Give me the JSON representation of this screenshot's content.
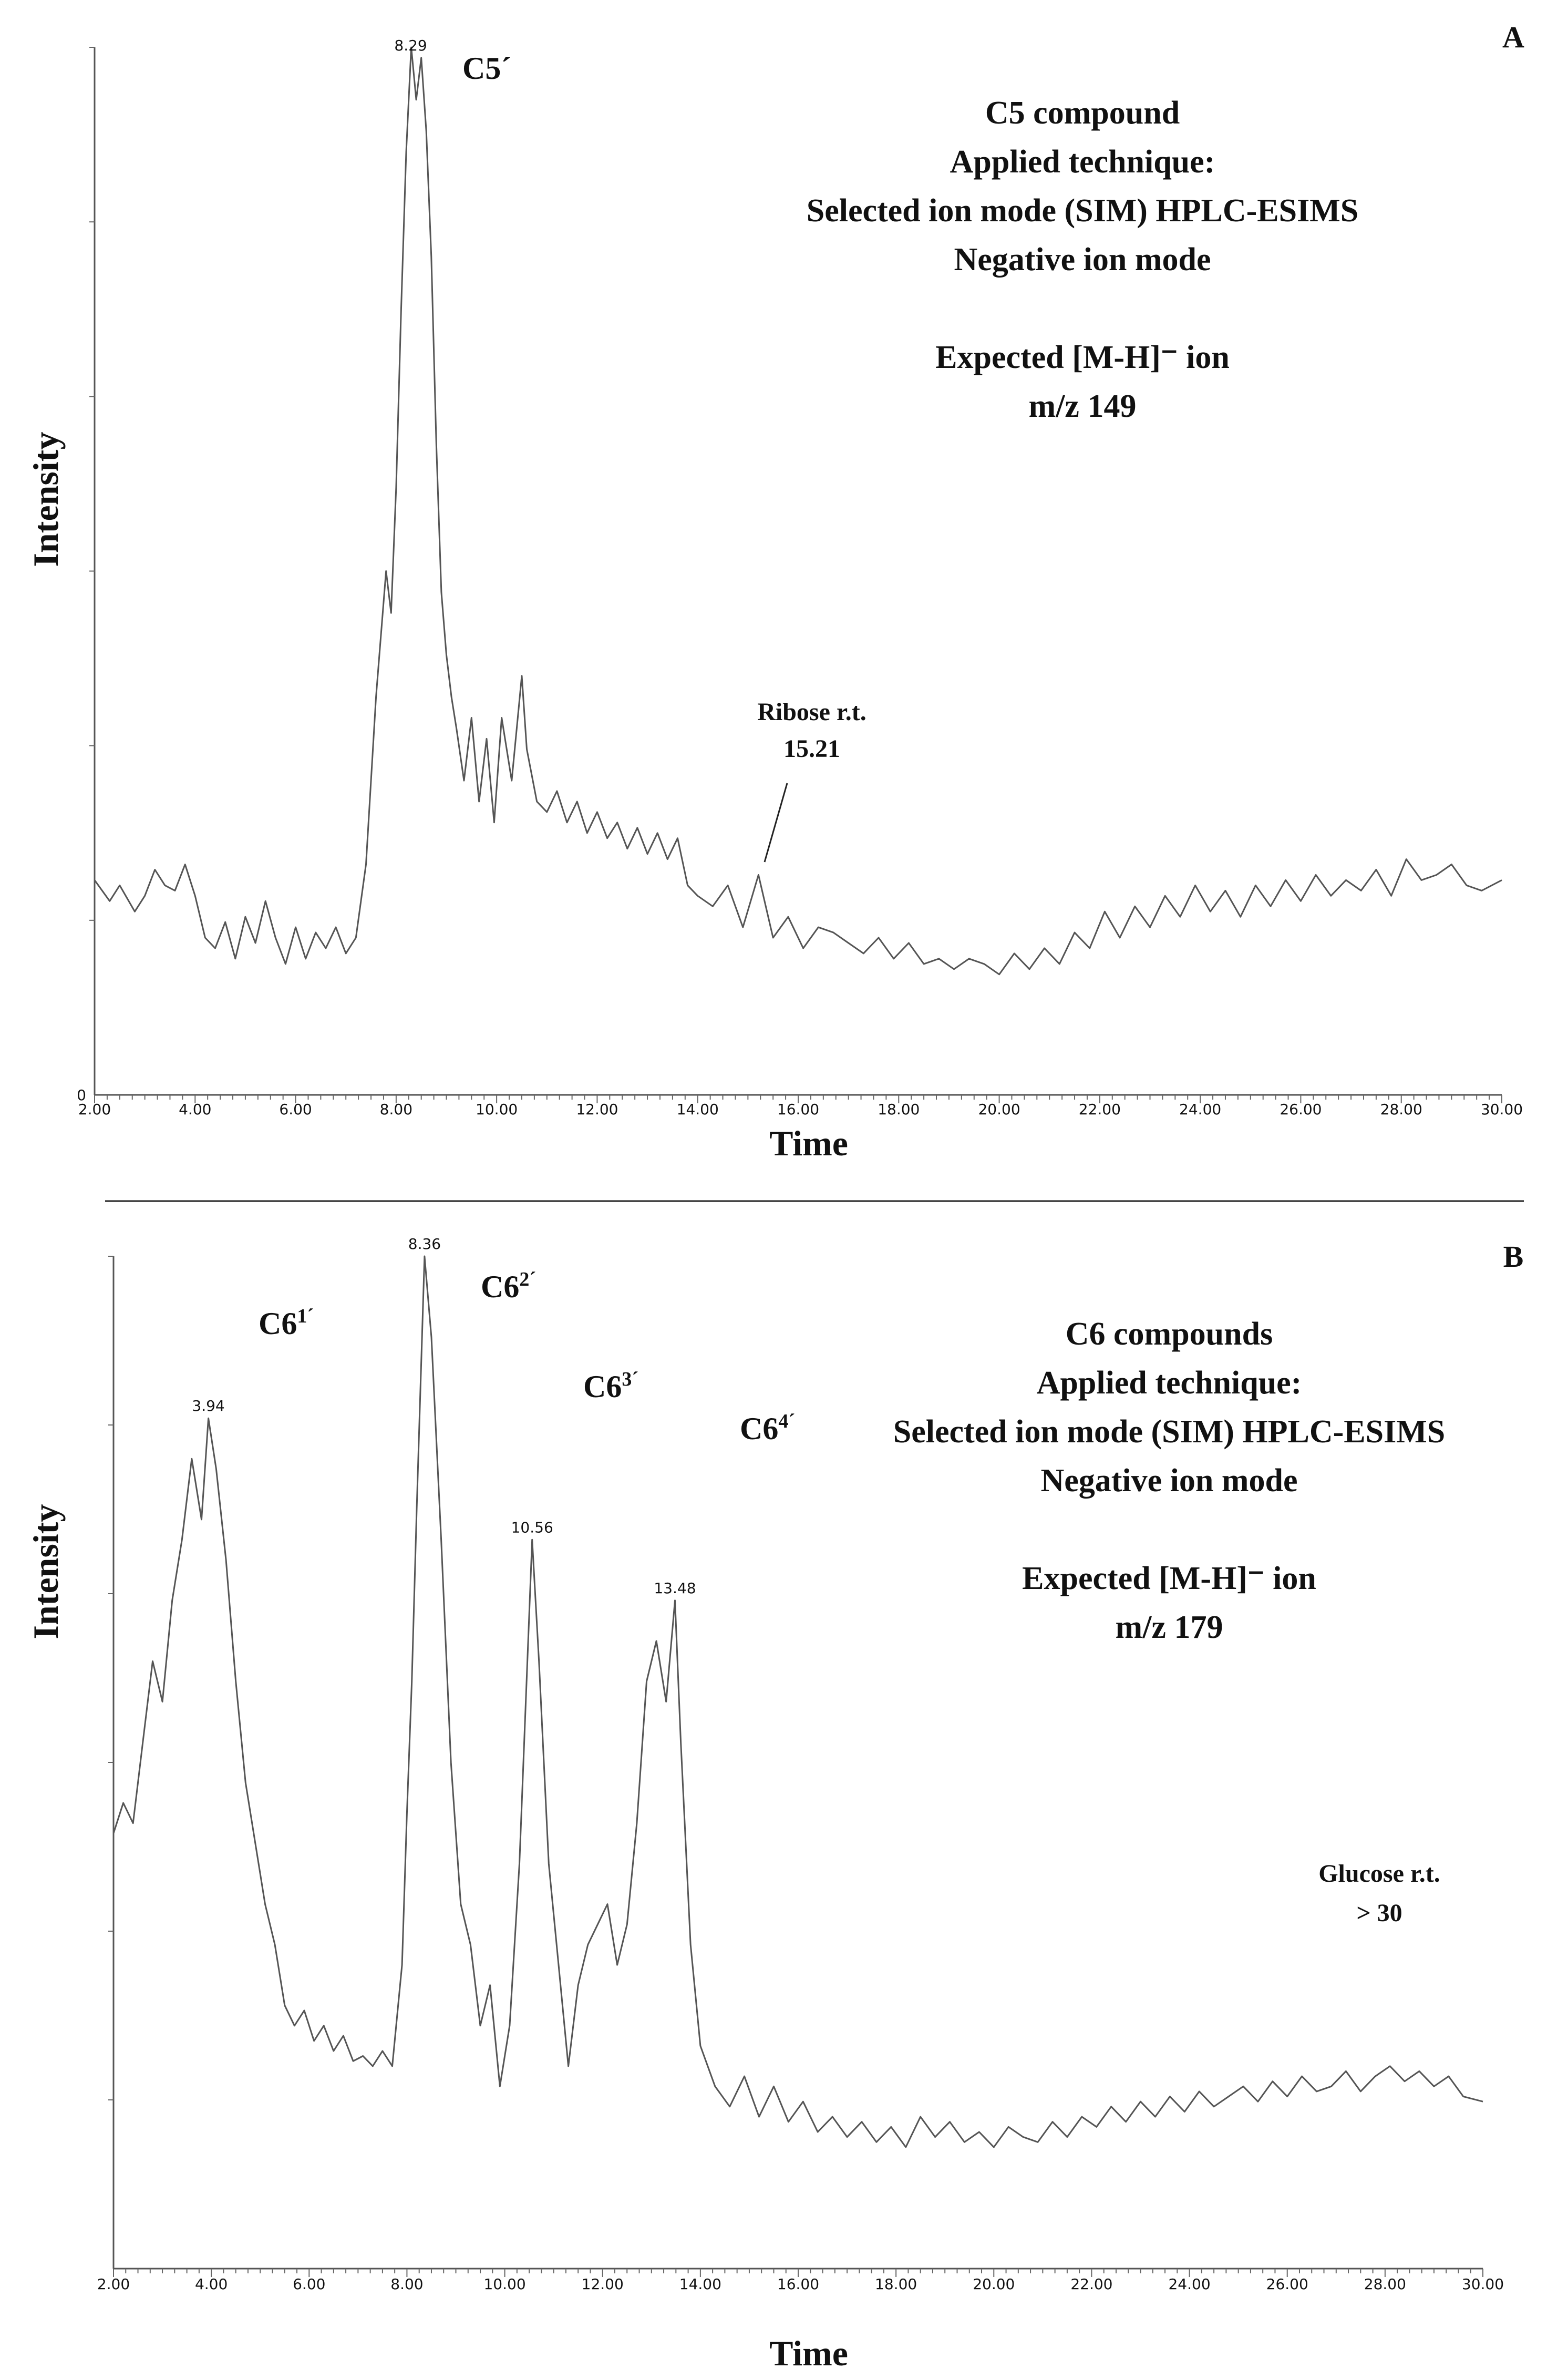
{
  "chart_data": [
    {
      "panel": "A",
      "type": "line",
      "xlabel": "Time",
      "ylabel": "Intensity",
      "xlim": [
        2,
        30
      ],
      "ylim": [
        0,
        100
      ],
      "x_ticks": [
        "2.00",
        "4.00",
        "6.00",
        "8.00",
        "10.00",
        "12.00",
        "14.00",
        "16.00",
        "18.00",
        "20.00",
        "22.00",
        "24.00",
        "26.00",
        "28.00",
        "30.00"
      ],
      "y_ticks": [
        "0"
      ],
      "series": [
        {
          "x": [
            2.0,
            2.3,
            2.5,
            2.8,
            3.0,
            3.2,
            3.4,
            3.6,
            3.8,
            4.0,
            4.2,
            4.4,
            4.6,
            4.8,
            5.0,
            5.2,
            5.4,
            5.6,
            5.8,
            6.0,
            6.2,
            6.4,
            6.6,
            6.8,
            7.0,
            7.2,
            7.4,
            7.6,
            7.8,
            7.9,
            8.0,
            8.1,
            8.2,
            8.3,
            8.4,
            8.5,
            8.6,
            8.7,
            8.8,
            8.9,
            9.0,
            9.1,
            9.2,
            9.35,
            9.5,
            9.65,
            9.8,
            9.95,
            10.1,
            10.3,
            10.5,
            10.6,
            10.8,
            11.0,
            11.2,
            11.4,
            11.6,
            11.8,
            12.0,
            12.2,
            12.4,
            12.6,
            12.8,
            13.0,
            13.2,
            13.4,
            13.6,
            13.8,
            14.0,
            14.3,
            14.6,
            14.9,
            15.21,
            15.5,
            15.8,
            16.1,
            16.4,
            16.7,
            17.0,
            17.3,
            17.6,
            17.9,
            18.2,
            18.5,
            18.8,
            19.1,
            19.4,
            19.7,
            20.0,
            20.3,
            20.6,
            20.9,
            21.2,
            21.5,
            21.8,
            22.1,
            22.4,
            22.7,
            23.0,
            23.3,
            23.6,
            23.9,
            24.2,
            24.5,
            24.8,
            25.1,
            25.4,
            25.7,
            26.0,
            26.3,
            26.6,
            26.9,
            27.2,
            27.5,
            27.8,
            28.1,
            28.4,
            28.7,
            29.0,
            29.3,
            29.6,
            30.0
          ],
          "y": [
            20.5,
            18.5,
            20.0,
            17.5,
            19.0,
            21.5,
            20.0,
            19.5,
            22.0,
            19.0,
            15.0,
            14.0,
            16.5,
            13.0,
            17.0,
            14.5,
            18.5,
            15.0,
            12.5,
            16.0,
            13.0,
            15.5,
            14.0,
            16.0,
            13.5,
            15.0,
            22.0,
            38.0,
            50.0,
            46.0,
            58.0,
            75.0,
            90.0,
            100.0,
            95.0,
            99.0,
            92.0,
            80.0,
            62.0,
            48.0,
            42.0,
            38.0,
            35.0,
            30.0,
            36.0,
            28.0,
            34.0,
            26.0,
            36.0,
            30.0,
            40.0,
            33.0,
            28.0,
            27.0,
            29.0,
            26.0,
            28.0,
            25.0,
            27.0,
            24.5,
            26.0,
            23.5,
            25.5,
            23.0,
            25.0,
            22.5,
            24.5,
            20.0,
            19.0,
            18.0,
            20.0,
            16.0,
            21.0,
            15.0,
            17.0,
            14.0,
            16.0,
            15.5,
            14.5,
            13.5,
            15.0,
            13.0,
            14.5,
            12.5,
            13.0,
            12.0,
            13.0,
            12.5,
            11.5,
            13.5,
            12.0,
            14.0,
            12.5,
            15.5,
            14.0,
            17.5,
            15.0,
            18.0,
            16.0,
            19.0,
            17.0,
            20.0,
            17.5,
            19.5,
            17.0,
            20.0,
            18.0,
            20.5,
            18.5,
            21.0,
            19.0,
            20.5,
            19.5,
            21.5,
            19.0,
            22.5,
            20.5,
            21.0,
            22.0,
            20.0,
            19.5,
            20.5
          ]
        }
      ],
      "peak_labels": [
        {
          "x": 8.29,
          "label": "8.29"
        }
      ],
      "compound_labels": [
        {
          "base": "C5",
          "sup": "",
          "suffix": "´"
        }
      ],
      "info_lines": [
        "C5 compound",
        "Applied technique:",
        "Selected ion mode (SIM) HPLC-ESIMS",
        "Negative ion mode",
        "",
        "Expected [M-H]⁻ ion",
        "m/z 149"
      ],
      "annotation": [
        "Ribose r.t.",
        "15.21"
      ]
    },
    {
      "panel": "B",
      "type": "line",
      "xlabel": "Time",
      "ylabel": "Intensity",
      "xlim": [
        2,
        30
      ],
      "ylim": [
        0,
        100
      ],
      "x_ticks": [
        "2.00",
        "4.00",
        "6.00",
        "8.00",
        "10.00",
        "12.00",
        "14.00",
        "16.00",
        "18.00",
        "20.00",
        "22.00",
        "24.00",
        "26.00",
        "28.00",
        "30.00"
      ],
      "series": [
        {
          "x": [
            2.0,
            2.2,
            2.4,
            2.6,
            2.8,
            3.0,
            3.2,
            3.4,
            3.6,
            3.8,
            3.94,
            4.1,
            4.3,
            4.5,
            4.7,
            4.9,
            5.1,
            5.3,
            5.5,
            5.7,
            5.9,
            6.1,
            6.3,
            6.5,
            6.7,
            6.9,
            7.1,
            7.3,
            7.5,
            7.7,
            7.9,
            8.0,
            8.1,
            8.2,
            8.36,
            8.5,
            8.7,
            8.9,
            9.1,
            9.3,
            9.5,
            9.7,
            9.9,
            10.1,
            10.3,
            10.56,
            10.7,
            10.9,
            11.1,
            11.3,
            11.5,
            11.7,
            11.9,
            12.1,
            12.3,
            12.5,
            12.7,
            12.9,
            13.1,
            13.3,
            13.48,
            13.6,
            13.8,
            14.0,
            14.3,
            14.6,
            14.9,
            15.2,
            15.5,
            15.8,
            16.1,
            16.4,
            16.7,
            17.0,
            17.3,
            17.6,
            17.9,
            18.2,
            18.5,
            18.8,
            19.1,
            19.4,
            19.7,
            20.0,
            20.3,
            20.6,
            20.9,
            21.2,
            21.5,
            21.8,
            22.1,
            22.4,
            22.7,
            23.0,
            23.3,
            23.6,
            23.9,
            24.2,
            24.5,
            24.8,
            25.1,
            25.4,
            25.7,
            26.0,
            26.3,
            26.6,
            26.9,
            27.2,
            27.5,
            27.8,
            28.1,
            28.4,
            28.7,
            29.0,
            29.3,
            29.6,
            30.0
          ],
          "y": [
            43.0,
            46.0,
            44.0,
            52.0,
            60.0,
            56.0,
            66.0,
            72.0,
            80.0,
            74.0,
            84.0,
            79.0,
            70.0,
            58.0,
            48.0,
            42.0,
            36.0,
            32.0,
            26.0,
            24.0,
            25.5,
            22.5,
            24.0,
            21.5,
            23.0,
            20.5,
            21.0,
            20.0,
            21.5,
            20.0,
            30.0,
            45.0,
            58.0,
            75.0,
            100.0,
            92.0,
            72.0,
            50.0,
            36.0,
            32.0,
            24.0,
            28.0,
            18.0,
            24.0,
            40.0,
            72.0,
            60.0,
            40.0,
            30.0,
            20.0,
            28.0,
            32.0,
            34.0,
            36.0,
            30.0,
            34.0,
            44.0,
            58.0,
            62.0,
            56.0,
            66.0,
            52.0,
            32.0,
            22.0,
            18.0,
            16.0,
            19.0,
            15.0,
            18.0,
            14.5,
            16.5,
            13.5,
            15.0,
            13.0,
            14.5,
            12.5,
            14.0,
            12.0,
            15.0,
            13.0,
            14.5,
            12.5,
            13.5,
            12.0,
            14.0,
            13.0,
            12.5,
            14.5,
            13.0,
            15.0,
            14.0,
            16.0,
            14.5,
            16.5,
            15.0,
            17.0,
            15.5,
            17.5,
            16.0,
            17.0,
            18.0,
            16.5,
            18.5,
            17.0,
            19.0,
            17.5,
            18.0,
            19.5,
            17.5,
            19.0,
            20.0,
            18.5,
            19.5,
            18.0,
            19.0,
            17.0,
            16.5
          ]
        }
      ],
      "peak_labels": [
        {
          "x": 3.94,
          "label": "3.94"
        },
        {
          "x": 8.36,
          "label": "8.36"
        },
        {
          "x": 10.56,
          "label": "10.56"
        },
        {
          "x": 13.48,
          "label": "13.48"
        }
      ],
      "compound_labels": [
        {
          "base": "C6",
          "sup": "1",
          "suffix": "´"
        },
        {
          "base": "C6",
          "sup": "2",
          "suffix": "´"
        },
        {
          "base": "C6",
          "sup": "3",
          "suffix": "´"
        },
        {
          "base": "C6",
          "sup": "4",
          "suffix": "´"
        }
      ],
      "info_lines": [
        "C6 compounds",
        "Applied technique:",
        "Selected ion mode (SIM) HPLC-ESIMS",
        "Negative ion mode",
        "",
        "Expected [M-H]⁻ ion",
        "m/z 179"
      ],
      "annotation": [
        "Glucose r.t.",
        "> 30"
      ]
    }
  ]
}
